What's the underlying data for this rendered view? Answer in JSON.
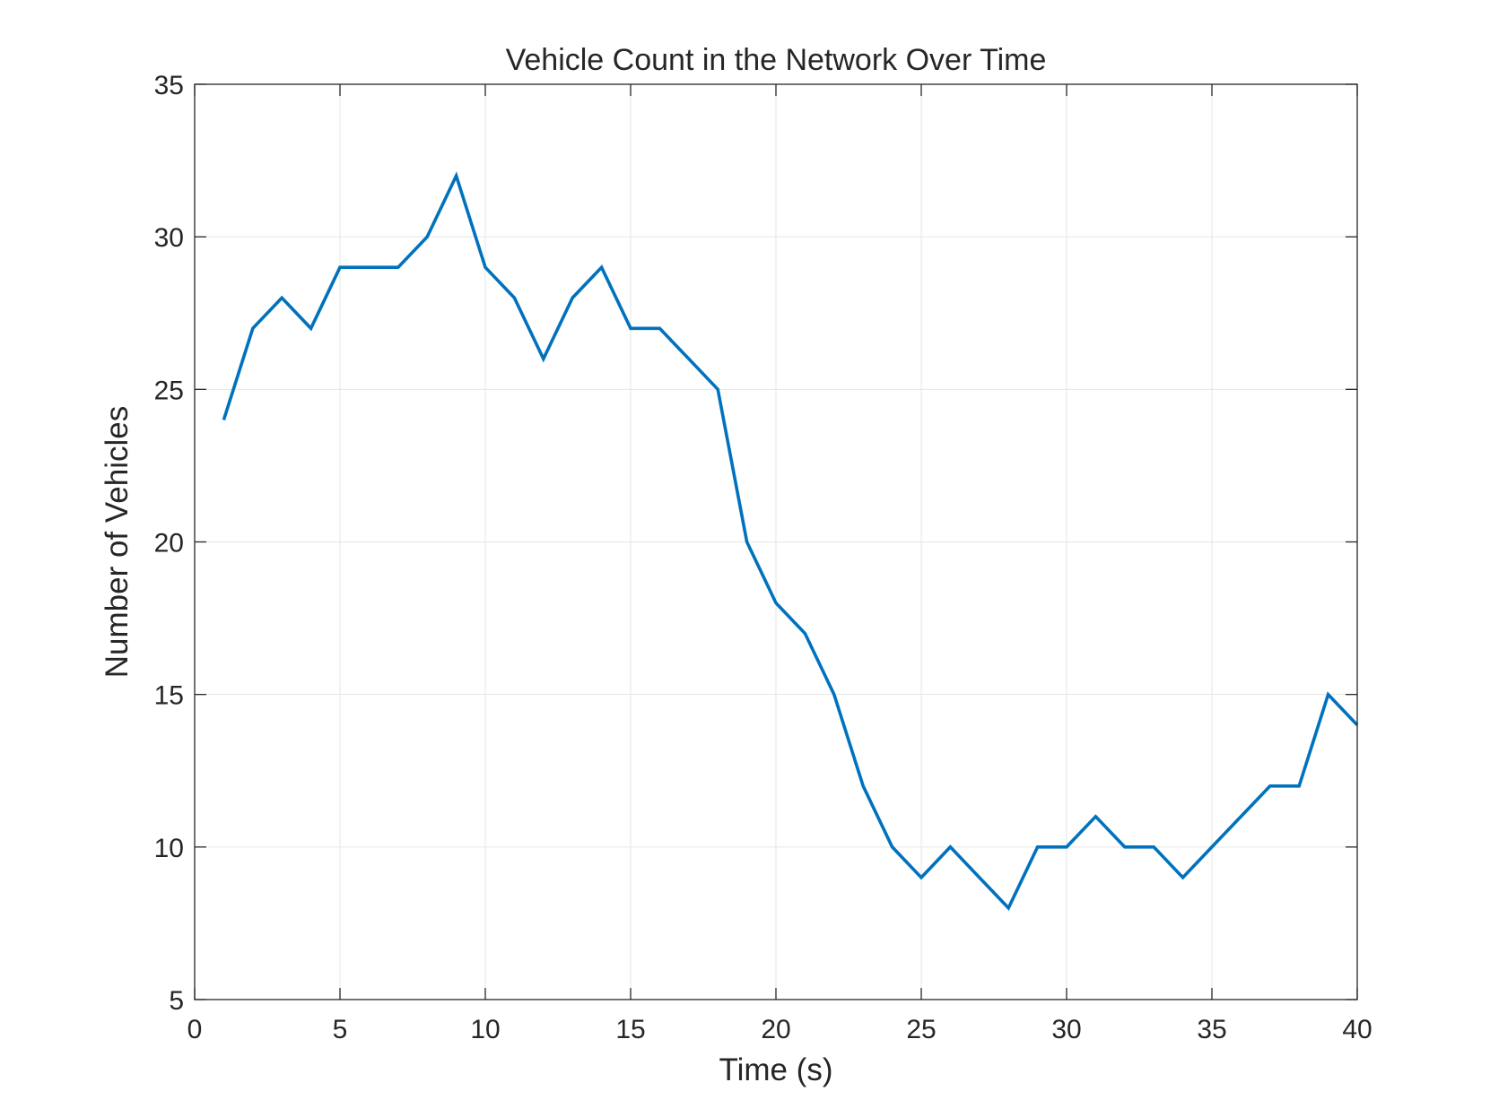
{
  "chart_data": {
    "type": "line",
    "title": "Vehicle Count in the Network Over Time",
    "xlabel": "Time (s)",
    "ylabel": "Number of Vehicles",
    "xlim": [
      0,
      40
    ],
    "ylim": [
      5,
      35
    ],
    "xticks": [
      "0",
      "5",
      "10",
      "15",
      "20",
      "25",
      "30",
      "35",
      "40"
    ],
    "yticks": [
      "5",
      "10",
      "15",
      "20",
      "25",
      "30",
      "35"
    ],
    "grid": true,
    "legend": "none",
    "series": [
      {
        "color": "#0072BD",
        "x": [
          1,
          2,
          3,
          4,
          5,
          6,
          7,
          8,
          9,
          10,
          11,
          12,
          13,
          14,
          15,
          16,
          17,
          18,
          19,
          20,
          21,
          22,
          23,
          24,
          25,
          26,
          27,
          28,
          29,
          30,
          31,
          32,
          33,
          34,
          35,
          36,
          37,
          38,
          39,
          40
        ],
        "y": [
          24,
          27,
          28,
          27,
          29,
          29,
          29,
          30,
          32,
          29,
          28,
          26,
          28,
          29,
          27,
          27,
          26,
          25,
          20,
          18,
          17,
          15,
          12,
          10,
          9,
          10,
          9,
          8,
          10,
          10,
          11,
          10,
          10,
          9,
          10,
          11,
          12,
          12,
          15,
          14
        ]
      }
    ]
  }
}
